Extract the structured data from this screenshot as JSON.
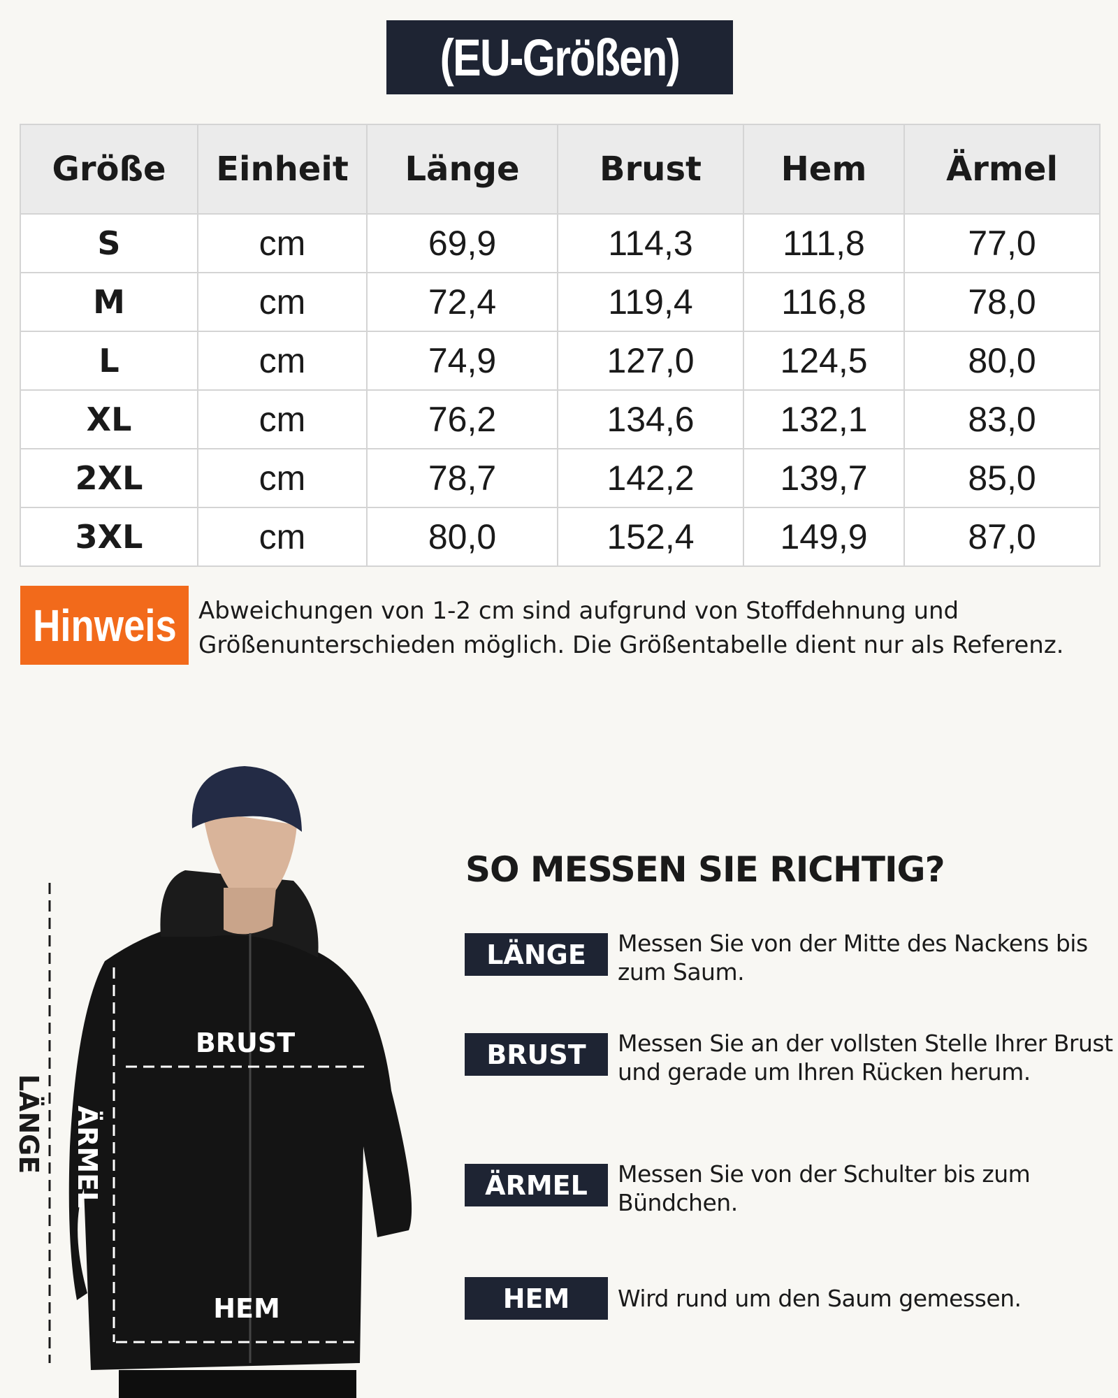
{
  "header": {
    "title": "(EU-Größen)"
  },
  "table": {
    "columns": [
      "Größe",
      "Einheit",
      "Länge",
      "Brust",
      "Hem",
      "Ärmel"
    ],
    "rows": [
      [
        "S",
        "cm",
        "69,9",
        "114,3",
        "111,8",
        "77,0"
      ],
      [
        "M",
        "cm",
        "72,4",
        "119,4",
        "116,8",
        "78,0"
      ],
      [
        "L",
        "cm",
        "74,9",
        "127,0",
        "124,5",
        "80,0"
      ],
      [
        "XL",
        "cm",
        "76,2",
        "134,6",
        "132,1",
        "83,0"
      ],
      [
        "2XL",
        "cm",
        "78,7",
        "142,2",
        "139,7",
        "85,0"
      ],
      [
        "3XL",
        "cm",
        "80,0",
        "152,4",
        "149,9",
        "87,0"
      ]
    ]
  },
  "note": {
    "label": "Hinweis",
    "text": "Abweichungen von 1-2 cm sind aufgrund von Stoffdehnung und Größenunterschieden möglich. Die Größentabelle dient nur als Referenz."
  },
  "figure": {
    "brust": "BRUST",
    "hem": "HEM",
    "laenge": "LÄNGE",
    "aermel": "ÄRMEL"
  },
  "guide": {
    "title": "SO MESSEN SIE RICHTIG?",
    "items": [
      {
        "label": "LÄNGE",
        "text": "Messen Sie von der Mitte des Nackens bis zum Saum."
      },
      {
        "label": "BRUST",
        "text": "Messen Sie an der vollsten Stelle Ihrer Brust und gerade um Ihren Rücken herum."
      },
      {
        "label": "ÄRMEL",
        "text": "Messen Sie von der Schulter bis zum Bündchen."
      },
      {
        "label": "HEM",
        "text": "Wird rund um den Saum gemessen."
      }
    ]
  }
}
